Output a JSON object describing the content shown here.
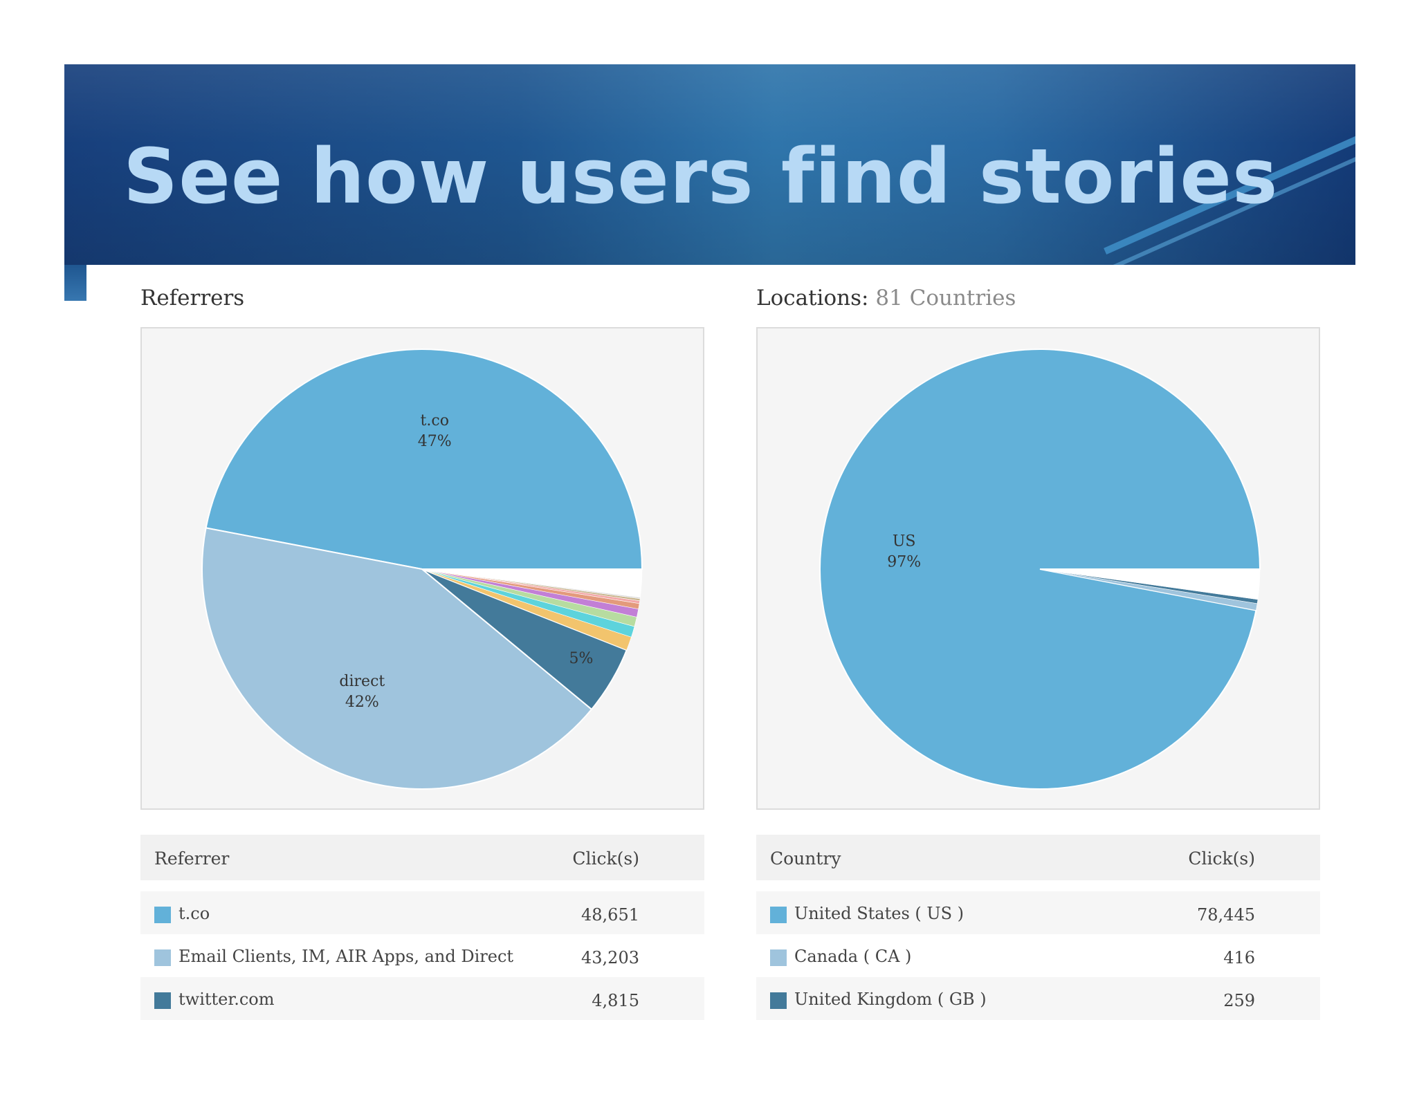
{
  "slide": {
    "title": "See how users find stories"
  },
  "referrers": {
    "heading": "Referrers",
    "table": {
      "col_name": "Referrer",
      "col_clicks": "Click(s)",
      "rows": [
        {
          "label": "t.co",
          "clicks": "48,651",
          "color": "#62b1d9"
        },
        {
          "label": "Email Clients, IM, AIR Apps, and Direct",
          "clicks": "43,203",
          "color": "#9fc4dd"
        },
        {
          "label": "twitter.com",
          "clicks": "4,815",
          "color": "#437a9a"
        }
      ]
    }
  },
  "locations": {
    "heading": "Locations:",
    "heading_count": "81 Countries",
    "table": {
      "col_name": "Country",
      "col_clicks": "Click(s)",
      "rows": [
        {
          "label": "United States ( US )",
          "clicks": "78,445",
          "color": "#62b1d9"
        },
        {
          "label": "Canada ( CA )",
          "clicks": "416",
          "color": "#9fc4dd"
        },
        {
          "label": "United Kingdom ( GB )",
          "clicks": "259",
          "color": "#437a9a"
        }
      ]
    }
  },
  "chart_data": [
    {
      "type": "pie",
      "title": "Referrers",
      "slices": [
        {
          "name": "t.co",
          "value": 47,
          "color": "#62b1d9",
          "label": "t.co",
          "pct": "47%"
        },
        {
          "name": "direct",
          "value": 42,
          "color": "#9fc4dd",
          "label": "direct",
          "pct": "42%"
        },
        {
          "name": "twitter.com",
          "value": 5,
          "color": "#437a9a",
          "label": "",
          "pct": "5%"
        },
        {
          "name": "",
          "value": 1,
          "color": "#f2c46d",
          "label": "",
          "pct": ""
        },
        {
          "name": "",
          "value": 0.8,
          "color": "#5dd3dc",
          "label": "",
          "pct": ""
        },
        {
          "name": "",
          "value": 0.7,
          "color": "#b7dca0",
          "label": "",
          "pct": ""
        },
        {
          "name": "",
          "value": 0.6,
          "color": "#c27fd6",
          "label": "",
          "pct": ""
        },
        {
          "name": "",
          "value": 0.4,
          "color": "#e39a7c",
          "label": "",
          "pct": ""
        },
        {
          "name": "",
          "value": 0.2,
          "color": "#f2a7a7",
          "label": "",
          "pct": ""
        },
        {
          "name": "",
          "value": 0.15,
          "color": "#c7b38a",
          "label": "",
          "pct": ""
        },
        {
          "name": "",
          "value": 0.1,
          "color": "#d9d9d9",
          "label": "",
          "pct": ""
        },
        {
          "name": "",
          "value": 2.05,
          "color": "#ffffff",
          "label": "",
          "pct": ""
        }
      ]
    },
    {
      "type": "pie",
      "title": "Locations",
      "slices": [
        {
          "name": "US",
          "value": 97,
          "color": "#62b1d9",
          "label": "US",
          "pct": "97%"
        },
        {
          "name": "CA",
          "value": 0.5,
          "color": "#9fc4dd",
          "label": "",
          "pct": ""
        },
        {
          "name": "GB",
          "value": 0.3,
          "color": "#437a9a",
          "label": "",
          "pct": ""
        },
        {
          "name": "",
          "value": 2.2,
          "color": "#ffffff",
          "label": "",
          "pct": ""
        }
      ]
    }
  ]
}
